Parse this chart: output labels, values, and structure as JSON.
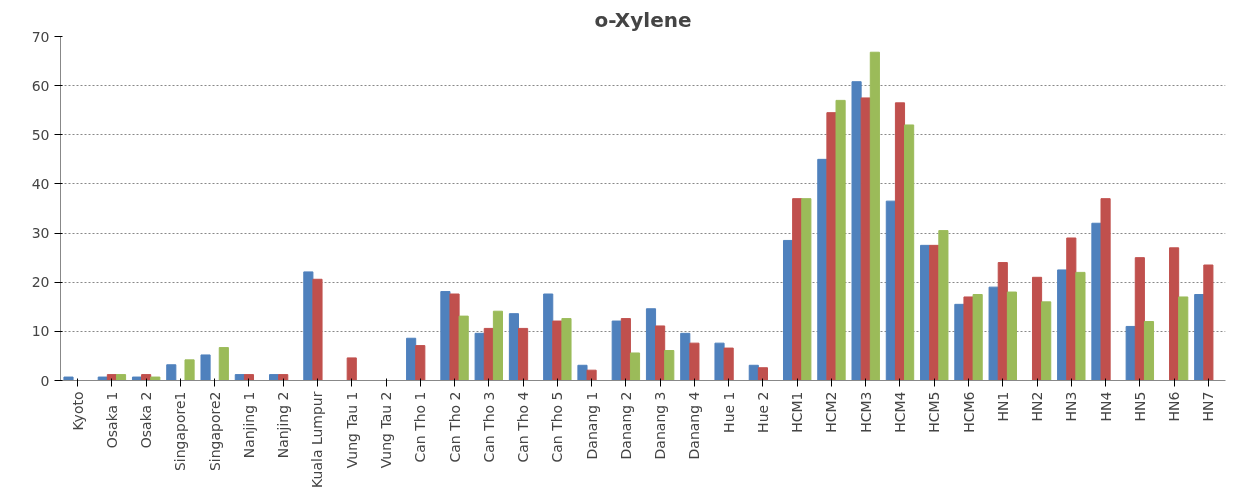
{
  "chart_data": {
    "type": "bar",
    "title": "o-Xylene",
    "categories": [
      "Kyoto",
      "Osaka 1",
      "Osaka 2",
      "Singapore1",
      "Singapore2",
      "Nanjing 1",
      "Nanjing 2",
      "Kuala Lumpur",
      "Vung Tau 1",
      "Vung Tau 2",
      "Can Tho 1",
      "Can Tho 2",
      "Can Tho 3",
      "Can Tho 4",
      "Can Tho 5",
      "Danang 1",
      "Danang 2",
      "Danang 3",
      "Danang 4",
      "Hue 1",
      "Hue 2",
      "HCM1",
      "HCM2",
      "HCM3",
      "HCM4",
      "HCM5",
      "HCM6",
      "HN1",
      "HN2",
      "HN3",
      "HN4",
      "HN5",
      "HN6",
      "HN7"
    ],
    "series": [
      {
        "color": "#4f81bd",
        "values": [
          0.7,
          0.7,
          0.7,
          3.2,
          5.2,
          1.2,
          1.2,
          22.1,
          null,
          null,
          8.6,
          18.1,
          9.6,
          13.6,
          17.6,
          3.1,
          12.1,
          14.6,
          9.6,
          7.6,
          3.1,
          28.5,
          45.0,
          60.8,
          36.5,
          27.5,
          15.5,
          19.0,
          null,
          22.5,
          32.0,
          11.0,
          null,
          17.5
        ]
      },
      {
        "color": "#c0504d",
        "values": [
          null,
          1.2,
          1.2,
          null,
          null,
          1.2,
          1.2,
          20.6,
          4.6,
          null,
          7.1,
          17.6,
          10.6,
          10.6,
          12.1,
          2.1,
          12.6,
          11.1,
          7.6,
          6.6,
          2.6,
          37.0,
          54.5,
          57.5,
          56.5,
          27.5,
          17.0,
          24.0,
          21.0,
          29.0,
          37.0,
          25.0,
          27.0,
          23.5
        ]
      },
      {
        "color": "#9bbb59",
        "values": [
          null,
          1.2,
          0.7,
          4.2,
          6.7,
          null,
          null,
          null,
          null,
          null,
          null,
          13.1,
          14.1,
          null,
          12.6,
          null,
          5.6,
          6.1,
          null,
          null,
          null,
          37.0,
          57.0,
          66.8,
          52.0,
          30.5,
          17.5,
          18.0,
          16.0,
          22.0,
          null,
          12.0,
          17.0,
          null
        ]
      }
    ],
    "ylim": [
      0,
      70
    ],
    "yticks": [
      0,
      10,
      20,
      30,
      40,
      50,
      60,
      70
    ],
    "grid": "y"
  }
}
